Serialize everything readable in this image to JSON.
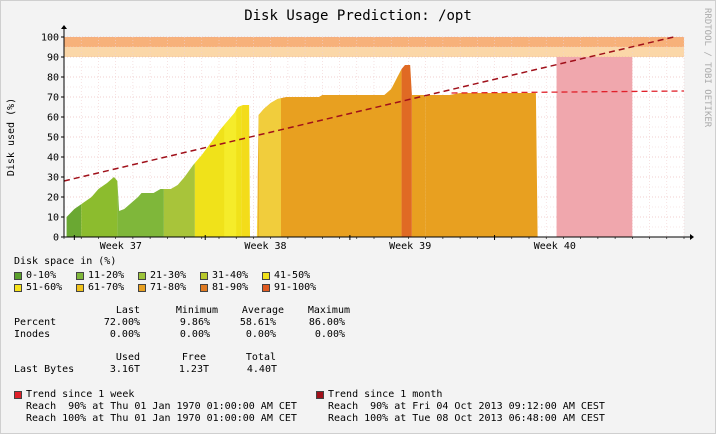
{
  "chart_data": {
    "type": "area",
    "title": "Disk Usage Prediction: /opt",
    "ylabel": "Disk used (%)",
    "watermark": "RRDTOOL / TOBI OETIKER",
    "ylim": [
      0,
      100
    ],
    "yticks": [
      "0",
      "10",
      "20",
      "30",
      "40",
      "50",
      "60",
      "70",
      "80",
      "90",
      "100"
    ],
    "xticks": [
      "Week 37",
      "Week 38",
      "Week 39",
      "Week 40"
    ],
    "grid": true,
    "threshold_bands": [
      {
        "from": 90,
        "to": 95,
        "color": "#fbd7a8"
      },
      {
        "from": 95,
        "to": 100,
        "color": "#f7b17a"
      }
    ],
    "usage_series": {
      "name": "Disk space in (%)",
      "note": "x = days elapsed from left edge of the plot; plot spans 28 days",
      "points": [
        [
          0.15,
          10
        ],
        [
          0.6,
          14
        ],
        [
          1.1,
          17
        ],
        [
          1.6,
          20
        ],
        [
          2.0,
          24
        ],
        [
          2.5,
          27
        ],
        [
          2.9,
          30
        ],
        [
          3.1,
          28
        ],
        [
          3.2,
          13
        ],
        [
          3.5,
          14
        ],
        [
          3.9,
          17
        ],
        [
          4.3,
          20
        ],
        [
          4.5,
          22
        ],
        [
          5.2,
          22
        ],
        [
          5.6,
          24
        ],
        [
          6.2,
          24
        ],
        [
          6.6,
          26
        ],
        [
          7.0,
          30
        ],
        [
          7.5,
          36
        ],
        [
          8.0,
          41
        ],
        [
          8.6,
          48
        ],
        [
          9.1,
          54
        ],
        [
          9.6,
          59
        ],
        [
          9.9,
          62
        ],
        [
          10.1,
          65
        ],
        [
          10.4,
          66
        ],
        [
          10.75,
          66
        ],
        [
          10.8,
          0
        ],
        [
          11.2,
          0
        ],
        [
          11.3,
          61
        ],
        [
          11.6,
          64
        ],
        [
          12.0,
          67
        ],
        [
          12.4,
          69
        ],
        [
          12.9,
          70
        ],
        [
          14.8,
          70
        ],
        [
          15.0,
          71
        ],
        [
          18.6,
          71
        ],
        [
          19.0,
          74
        ],
        [
          19.3,
          79
        ],
        [
          19.6,
          84
        ],
        [
          19.8,
          86
        ],
        [
          20.1,
          86
        ],
        [
          20.2,
          71
        ],
        [
          20.9,
          71
        ],
        [
          20.95,
          70
        ],
        [
          21.1,
          71
        ],
        [
          22.4,
          71
        ],
        [
          23.0,
          72
        ],
        [
          27.4,
          72
        ],
        [
          27.5,
          0
        ]
      ],
      "segments": [
        {
          "to": 1.0,
          "color": "#6aa832"
        },
        {
          "to": 3.1,
          "color": "#8cbc2e"
        },
        {
          "to": 5.8,
          "color": "#7fb73a"
        },
        {
          "to": 7.6,
          "color": "#a8c43a"
        },
        {
          "to": 10.3,
          "color": "#f0e21a"
        },
        {
          "to": 11.25,
          "color": "#f3dc1a"
        },
        {
          "to": 19.6,
          "color": "#e8a020"
        },
        {
          "to": 20.2,
          "color": "#e06a24"
        },
        {
          "to": 21.0,
          "color": "#e8a020"
        },
        {
          "to": 27.5,
          "color": "#e8a020"
        }
      ],
      "peaks": [
        {
          "from": 9.3,
          "to": 10.0,
          "color": "#f5ec2a"
        },
        {
          "from": 11.3,
          "to": 12.6,
          "color": "#f1cd3c"
        }
      ]
    },
    "prediction_area": {
      "from": 28.6,
      "to": 33.0,
      "value": 90,
      "color": "#f0a7ad"
    },
    "legend": {
      "title": "Disk space in (%)",
      "items": [
        {
          "label": "0-10%",
          "color": "#5aa02c"
        },
        {
          "label": "11-20%",
          "color": "#7fb73a"
        },
        {
          "label": "21-30%",
          "color": "#9cc43a"
        },
        {
          "label": "31-40%",
          "color": "#b8c82a"
        },
        {
          "label": "41-50%",
          "color": "#f0e21a"
        },
        {
          "label": "51-60%",
          "color": "#f7e21a"
        },
        {
          "label": "61-70%",
          "color": "#f0c21a"
        },
        {
          "label": "71-80%",
          "color": "#e8a020"
        },
        {
          "label": "81-90%",
          "color": "#e07a20"
        },
        {
          "label": "91-100%",
          "color": "#e05a20"
        }
      ]
    },
    "trend_week": {
      "name": "Trend since 1 week",
      "color": "#e0202a",
      "points": [
        [
          0,
          28
        ],
        [
          22.5,
          72
        ],
        [
          36.0,
          73
        ]
      ],
      "note": "week trend shown as red dashed line from ~23 to right edge"
    },
    "trend_month": {
      "name": "Trend since 1 month",
      "color": "#a0101a",
      "points": [
        [
          0,
          28
        ],
        [
          35.4,
          100
        ]
      ]
    }
  },
  "stats": {
    "header": {
      "last": "Last",
      "min": "Minimum",
      "avg": "Average",
      "max": "Maximum"
    },
    "rows": [
      {
        "label": "Percent",
        "last": "72.00%",
        "min": "9.86%",
        "avg": "58.61%",
        "max": "86.00%"
      },
      {
        "label": "Inodes",
        "last": "0.00%",
        "min": "0.00%",
        "avg": "0.00%",
        "max": "0.00%"
      }
    ],
    "bytes_header": {
      "used": "Used",
      "free": "Free",
      "total": "Total"
    },
    "bytes_row": {
      "label": "Last Bytes",
      "used": "3.16T",
      "free": "1.23T",
      "total": "4.40T"
    }
  },
  "trends": {
    "week": {
      "label": "Trend since 1 week",
      "color": "#e0202a",
      "line1": "Reach  90% at Thu 01 Jan 1970 01:00:00 AM CET",
      "line2": "Reach 100% at Thu 01 Jan 1970 01:00:00 AM CET"
    },
    "month": {
      "label": "Trend since 1 month",
      "color": "#a0101a",
      "line1": "Reach  90% at Fri 04 Oct 2013 09:12:00 AM CEST",
      "line2": "Reach 100% at Tue 08 Oct 2013 06:48:00 AM CEST"
    }
  }
}
